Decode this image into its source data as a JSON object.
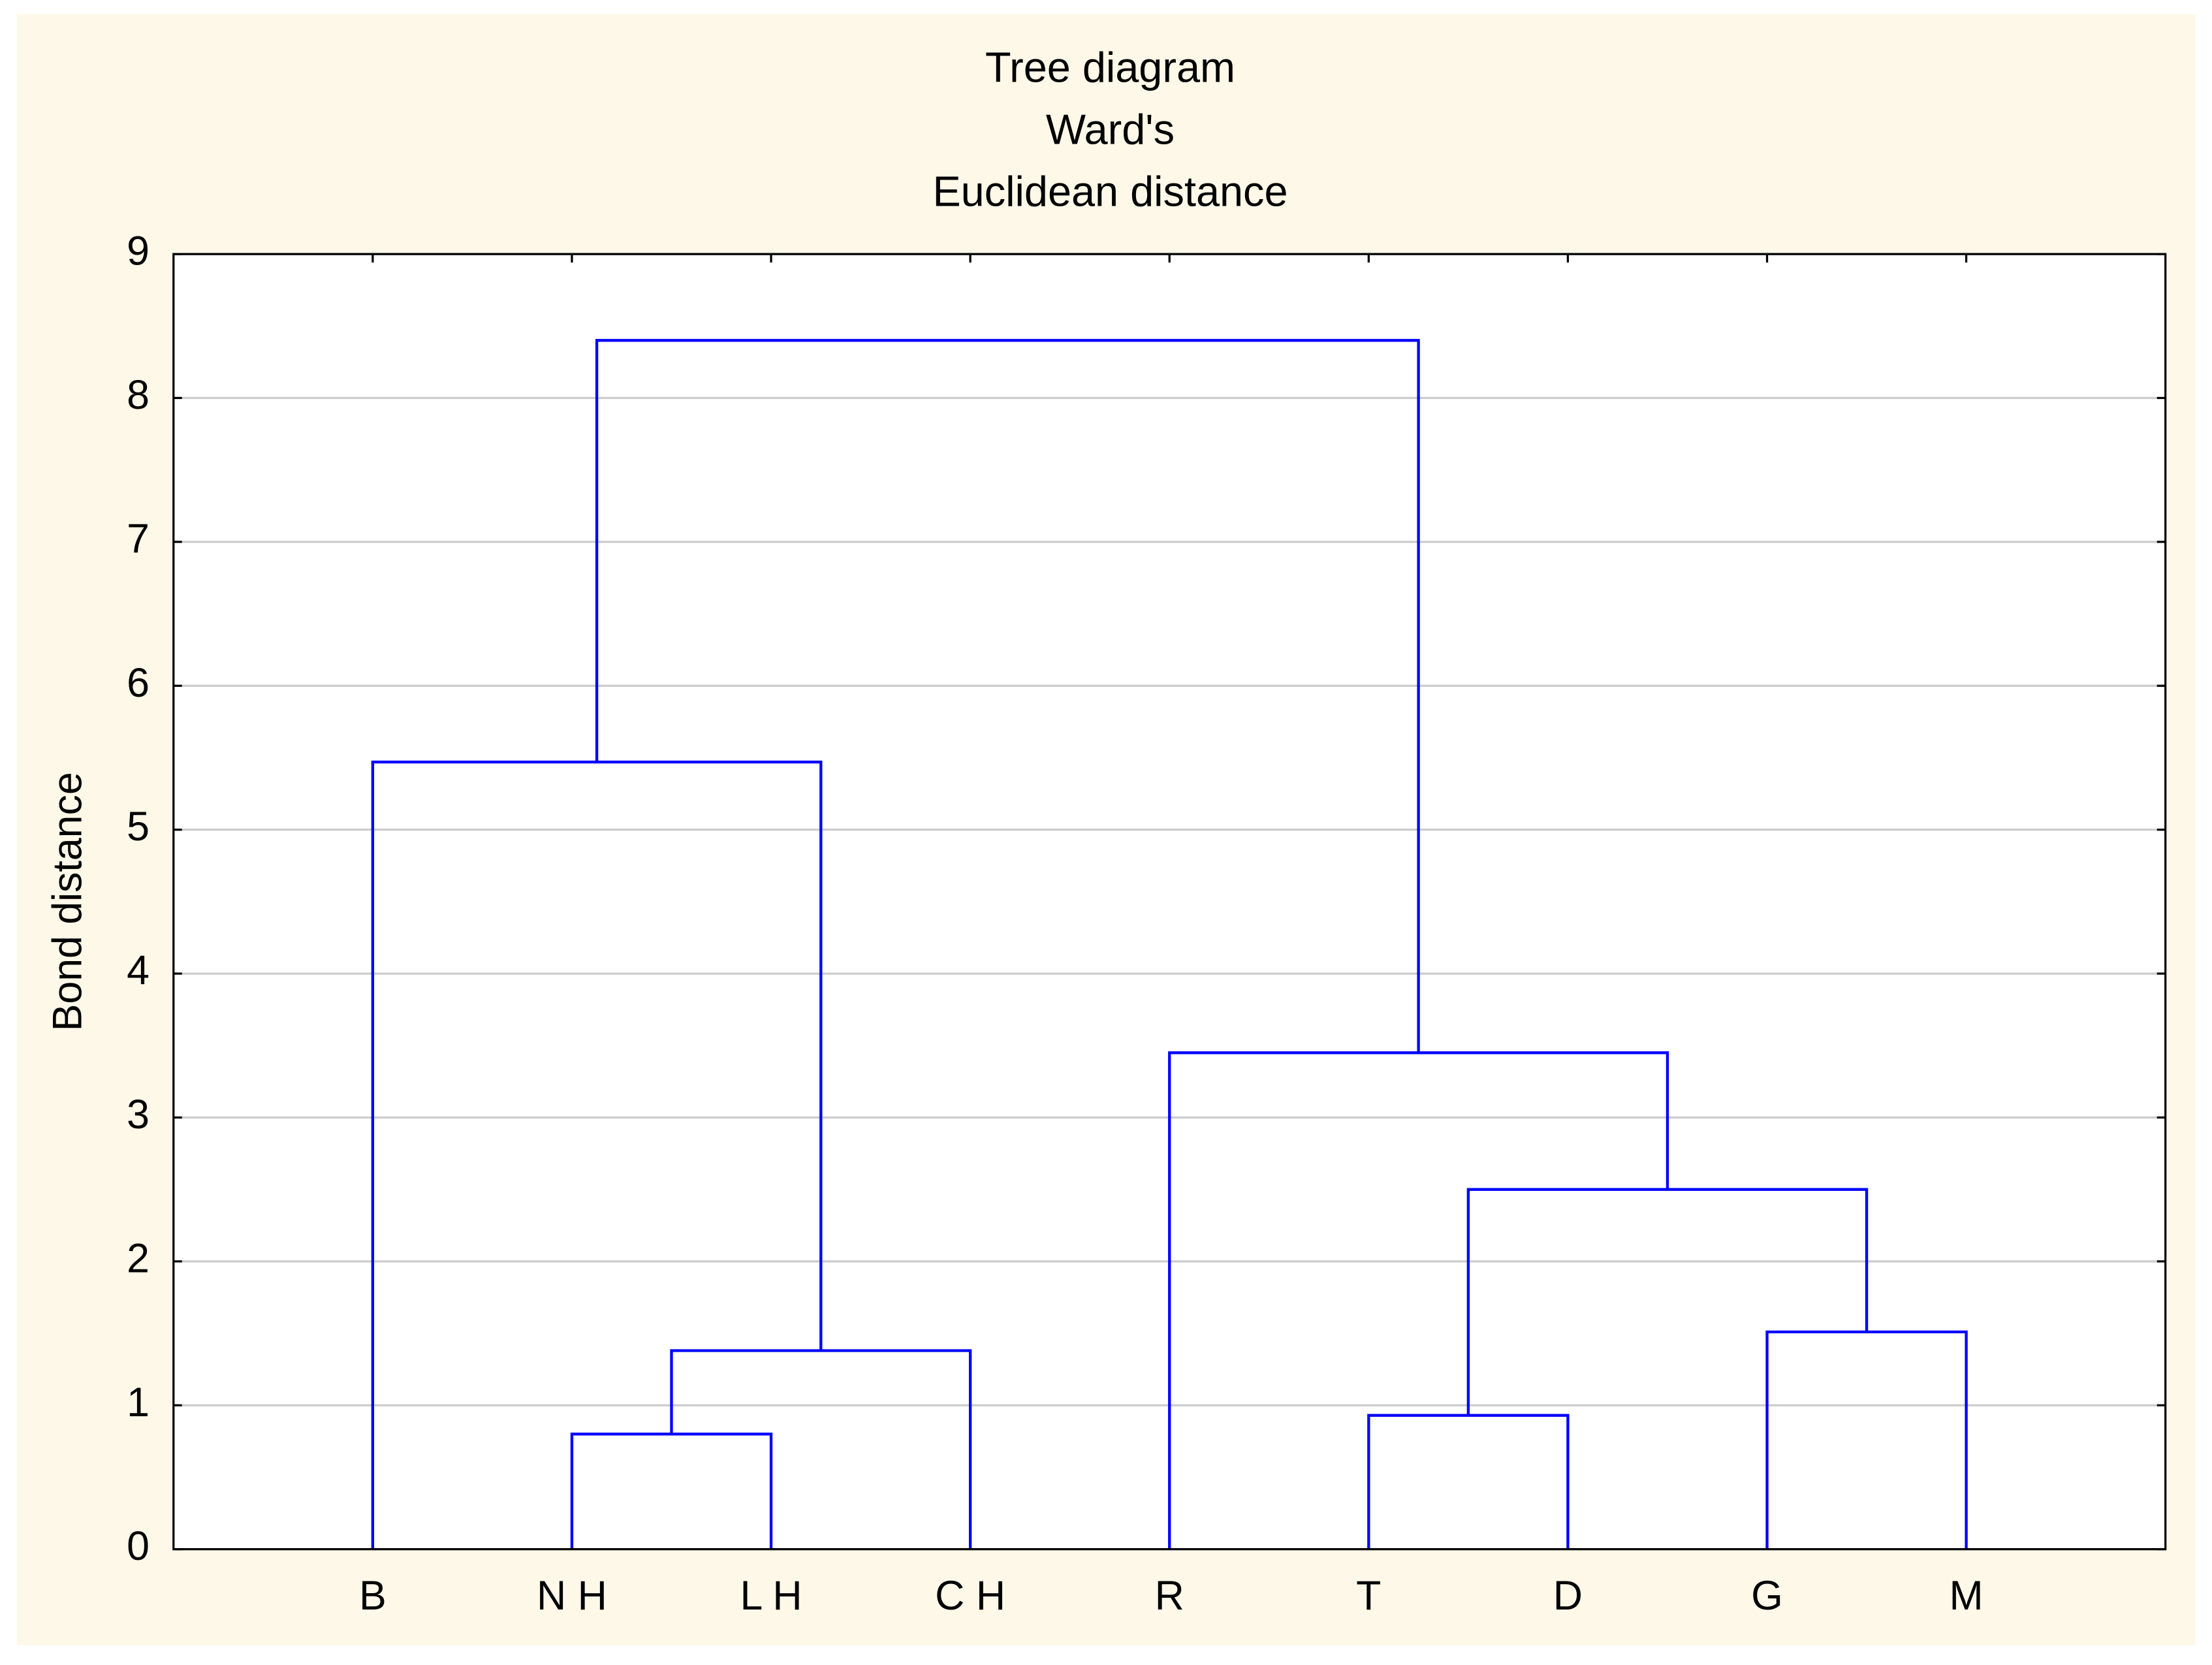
{
  "chart_data": {
    "type": "dendrogram",
    "title": [
      "Tree diagram",
      "Ward's",
      "Euclidean distance"
    ],
    "ylabel": "Bond distance",
    "categories": [
      "B",
      "N H",
      "L H",
      "C H",
      "R",
      "T",
      "D",
      "G",
      "M"
    ],
    "merges": [
      {
        "children": [
          1,
          2
        ],
        "height": 0.8
      },
      {
        "children": [
          9,
          3
        ],
        "height": 1.38
      },
      {
        "children": [
          0,
          10
        ],
        "height": 5.47
      },
      {
        "children": [
          5,
          6
        ],
        "height": 0.93
      },
      {
        "children": [
          7,
          8
        ],
        "height": 1.51
      },
      {
        "children": [
          12,
          13
        ],
        "height": 2.5
      },
      {
        "children": [
          4,
          14
        ],
        "height": 3.45
      },
      {
        "children": [
          11,
          15
        ],
        "height": 8.4
      }
    ],
    "color": "#0000ff",
    "ylim": [
      0,
      9
    ],
    "yticks": [
      0,
      1,
      2,
      3,
      4,
      5,
      6,
      7,
      8,
      9
    ],
    "grid": true
  }
}
